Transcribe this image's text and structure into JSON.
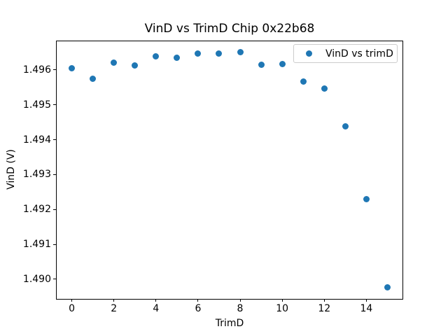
{
  "chart_data": {
    "type": "scatter",
    "title": "VinD vs TrimD Chip 0x22b68",
    "xlabel": "TrimD",
    "ylabel": "VinD (V)",
    "legend": {
      "position": "upper right",
      "entries": [
        "VinD vs trimD"
      ]
    },
    "marker_color": "#1f77b4",
    "grid": false,
    "x": [
      0,
      1,
      2,
      3,
      4,
      5,
      6,
      7,
      8,
      9,
      10,
      11,
      12,
      13,
      14,
      15
    ],
    "series": [
      {
        "name": "VinD vs trimD",
        "values": [
          1.49605,
          1.49576,
          1.49621,
          1.49614,
          1.4964,
          1.49636,
          1.49648,
          1.49647,
          1.49652,
          1.49616,
          1.49617,
          1.49568,
          1.49548,
          1.49438,
          1.4923,
          1.48978
        ]
      }
    ],
    "xlim": [
      -0.75,
      15.75
    ],
    "ylim": [
      1.489433,
      1.496847
    ],
    "xticks": [
      0,
      2,
      4,
      6,
      8,
      10,
      12,
      14
    ],
    "yticks": [
      1.49,
      1.491,
      1.492,
      1.493,
      1.494,
      1.495,
      1.496
    ],
    "ytick_decimals": 3
  }
}
